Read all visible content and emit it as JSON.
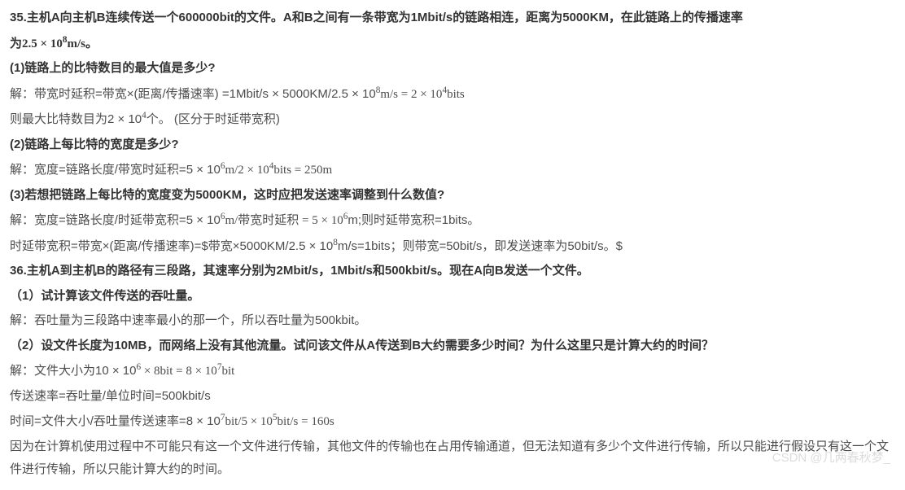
{
  "q35": {
    "title_a": "35.主机A向主机B连续传送一个600000bit的文件。A和B之间有一条带宽为1Mbit/s的链路相连，距离为5000KM，在此链路上的传播速率",
    "title_b_prefix": "为",
    "title_b_math": "2.5 × 10",
    "title_b_exp": "8",
    "title_b_suffix": "m/s。",
    "p1": {
      "q": "(1)链路上的比特数目的最大值是多少?",
      "a1_prefix": "解：带宽时延积=带宽×(距离/传播速率)  =1Mbit/s × 5000KM/2.5 × 10",
      "a1_exp": "8",
      "a1_mid": "m/s = 2 × 10",
      "a1_exp2": "4",
      "a1_suffix": "bits",
      "a2_prefix": "则最大比特数目为2 × 10",
      "a2_exp": "4",
      "a2_suffix": "个。   (区分于时延带宽积)"
    },
    "p2": {
      "q": "(2)链路上每比特的宽度是多少?",
      "a1_prefix": "解：宽度=链路长度/带宽时延积=5 × 10",
      "a1_exp1": "6",
      "a1_mid": "m/2 × 10",
      "a1_exp2": "4",
      "a1_suffix": "bits = 250m"
    },
    "p3": {
      "q": "(3)若想把链路上每比特的宽度变为5000KM，这时应把发送速率调整到什么数值?",
      "a1_prefix": "解：宽度=链路长度/时延带宽积=5 × 10",
      "a1_exp1": "6",
      "a1_mid": "m/带宽时延积 = 5 × 10",
      "a1_exp2": "6",
      "a1_suffix": "m;则时延带宽积=1bits。",
      "a2_prefix": "时延带宽积=带宽×(距离/传播速率)=$带宽×5000KM/2.5 × 10",
      "a2_exp": "8",
      "a2_suffix": "m/s=1bits；则带宽=50bit/s，即发送速率为50bit/s。$"
    }
  },
  "q36": {
    "title": "36.主机A到主机B的路径有三段路，其速率分别为2Mbit/s，1Mbit/s和500kbit/s。现在A向B发送一个文件。",
    "p1": {
      "q": "（1）试计算该文件传送的吞吐量。",
      "a1": "解：吞吐量为三段路中速率最小的那一个，所以吞吐量为500kbit。"
    },
    "p2": {
      "q": "（2）设文件长度为10MB，而网络上没有其他流量。试问该文件从A传送到B大约需要多少时间？为什么这里只是计算大约的时间？",
      "a1_prefix": "解：文件大小为10 × 10",
      "a1_exp1": "6",
      "a1_mid": " × 8bit = 8 × 10",
      "a1_exp2": "7",
      "a1_suffix": "bit",
      "a2": "传送速率=吞吐量/单位时间=500kbit/s",
      "a3_prefix": "时间=文件大小/吞吐量传送速率=8 × 10",
      "a3_exp1": "7",
      "a3_mid": "bit/5 × 10",
      "a3_exp2": "5",
      "a3_suffix": "bit/s = 160s",
      "a4": "因为在计算机使用过程中不可能只有这一个文件进行传输，其他文件的传输也在占用传输通道，但无法知道有多少个文件进行传输，所以只能进行假设只有这一个文件进行传输，所以只能计算大约的时间。"
    }
  },
  "watermark": "CSDN @几两春秋梦_"
}
